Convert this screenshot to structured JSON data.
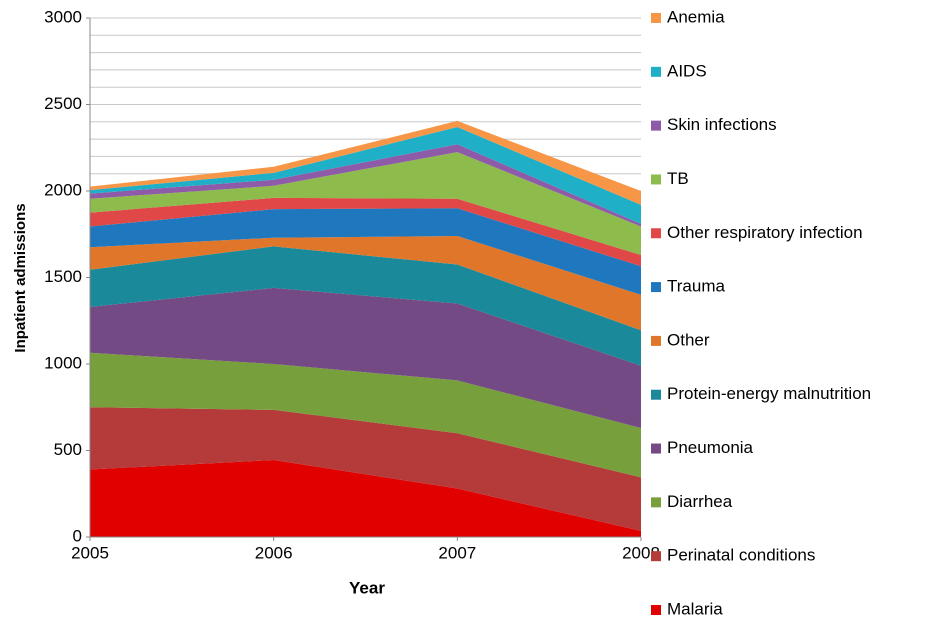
{
  "chart_data": {
    "type": "stacked_area",
    "x_label": "Year",
    "y_label": "Inpatient admissions",
    "x": [
      2005,
      2006,
      2007,
      2008
    ],
    "xlim": [
      2005,
      2008
    ],
    "xticks": [
      2005,
      2006,
      2007,
      2008
    ],
    "ylim": [
      0,
      3000
    ],
    "yticks": [
      0,
      500,
      1000,
      1500,
      2000,
      2500,
      3000
    ],
    "grid": true,
    "ygrid": [
      100,
      200,
      300,
      400,
      500,
      600,
      700,
      800,
      900,
      1000,
      1100,
      1200,
      1300,
      1400,
      1500,
      1600,
      1700,
      1800,
      1900,
      2000,
      2100,
      2200,
      2300,
      2400,
      2500,
      2600,
      2700,
      2800,
      2900,
      3000
    ],
    "legend": "right",
    "series": [
      {
        "name": "Malaria",
        "color": "#e00000",
        "values": [
          390,
          445,
          280,
          35
        ]
      },
      {
        "name": "Perinatal conditions",
        "color": "#b53a3a",
        "values": [
          360,
          290,
          320,
          310
        ]
      },
      {
        "name": "Diarrhea",
        "color": "#77a03c",
        "values": [
          315,
          265,
          305,
          285
        ]
      },
      {
        "name": "Pneumonia",
        "color": "#744a84",
        "values": [
          265,
          440,
          445,
          360
        ]
      },
      {
        "name": "Protein-energy malnutrition",
        "color": "#1a8a9b",
        "values": [
          215,
          240,
          225,
          205
        ]
      },
      {
        "name": "Other",
        "color": "#e0762a",
        "values": [
          130,
          50,
          165,
          205
        ]
      },
      {
        "name": "Trauma",
        "color": "#1f78be",
        "values": [
          120,
          165,
          160,
          165
        ]
      },
      {
        "name": "Other respiratory infection",
        "color": "#e04848",
        "values": [
          80,
          65,
          55,
          65
        ]
      },
      {
        "name": "TB",
        "color": "#8dbb4c",
        "values": [
          80,
          70,
          270,
          165
        ]
      },
      {
        "name": "Skin infections",
        "color": "#8e5ba8",
        "values": [
          30,
          35,
          45,
          15
        ]
      },
      {
        "name": "AIDS",
        "color": "#1fb0c8",
        "values": [
          20,
          40,
          100,
          110
        ]
      },
      {
        "name": "Anemia",
        "color": "#f79646",
        "values": [
          20,
          35,
          35,
          80
        ]
      }
    ]
  }
}
